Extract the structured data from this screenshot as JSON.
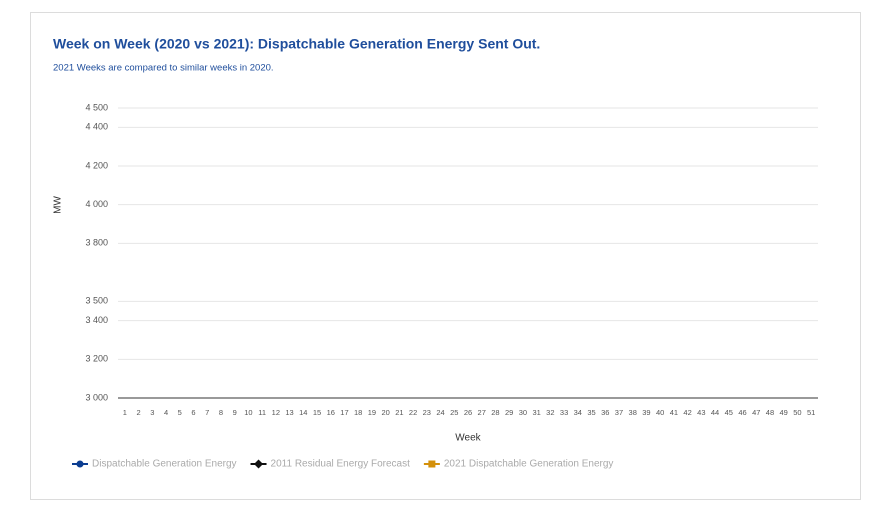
{
  "chart_data": {
    "type": "line",
    "title": "Week on Week (2020 vs 2021): Dispatchable Generation Energy Sent Out.",
    "subtitle": "2021 Weeks are compared to similar weeks in 2020.",
    "y_label": "MW",
    "x_label": "Week",
    "categories": [
      "1",
      "2",
      "3",
      "4",
      "5",
      "6",
      "7",
      "8",
      "9",
      "10",
      "11",
      "12",
      "13",
      "14",
      "15",
      "16",
      "17",
      "18",
      "19",
      "20",
      "21",
      "22",
      "23",
      "24",
      "25",
      "26",
      "27",
      "28",
      "29",
      "30",
      "31",
      "32",
      "33",
      "34",
      "35",
      "36",
      "37",
      "38",
      "39",
      "40",
      "41",
      "42",
      "43",
      "44",
      "45",
      "46",
      "47",
      "48",
      "49",
      "50",
      "51"
    ],
    "series": [
      {
        "name": "Dispatchable Generation Energy",
        "color": "#0b3d91",
        "marker": "circle",
        "values": [
          null,
          null,
          null,
          null,
          null,
          null,
          null,
          null,
          null,
          null,
          null,
          null,
          null,
          null,
          null,
          null,
          null,
          null,
          null,
          null,
          null,
          null,
          null,
          null,
          null,
          null,
          null,
          null,
          null,
          null,
          null,
          null,
          null,
          null,
          null,
          null,
          null,
          null,
          null,
          null,
          null,
          null,
          null,
          null,
          null,
          null,
          null,
          null,
          null,
          null,
          null
        ]
      },
      {
        "name": "2011 Residual Energy Forecast",
        "color": "#111111",
        "marker": "diamond",
        "values": [
          null,
          null,
          null,
          null,
          null,
          null,
          null,
          null,
          null,
          null,
          null,
          null,
          null,
          null,
          null,
          null,
          null,
          null,
          null,
          null,
          null,
          null,
          null,
          null,
          null,
          null,
          null,
          null,
          null,
          null,
          null,
          null,
          null,
          null,
          null,
          null,
          null,
          null,
          null,
          null,
          null,
          null,
          null,
          null,
          null,
          null,
          null,
          null,
          null,
          null,
          null
        ]
      },
      {
        "name": "2021 Dispatchable Generation Energy",
        "color": "#d4900a",
        "marker": "square",
        "values": [
          null,
          null,
          null,
          null,
          null,
          null,
          null,
          null,
          null,
          null,
          null,
          null,
          null,
          null,
          null,
          null,
          null,
          null,
          null,
          null,
          null,
          null,
          null,
          null,
          null,
          null,
          null,
          null,
          null,
          null,
          null,
          null,
          null,
          null,
          null,
          null,
          null,
          null,
          null,
          null,
          null,
          null,
          null,
          null,
          null,
          null,
          null,
          null,
          null,
          null,
          null
        ]
      }
    ],
    "ylim": [
      3000,
      4500
    ],
    "yticks": [
      {
        "value": 3000,
        "label": "3 000"
      },
      {
        "value": 3200,
        "label": "3 200"
      },
      {
        "value": 3400,
        "label": "3 400"
      },
      {
        "value": 3500,
        "label": "3 500"
      },
      {
        "value": 3800,
        "label": "3 800"
      },
      {
        "value": 4000,
        "label": "4 000"
      },
      {
        "value": 4200,
        "label": "4 200"
      },
      {
        "value": 4400,
        "label": "4 400"
      },
      {
        "value": 4500,
        "label": "4 500"
      }
    ],
    "grid": true
  }
}
